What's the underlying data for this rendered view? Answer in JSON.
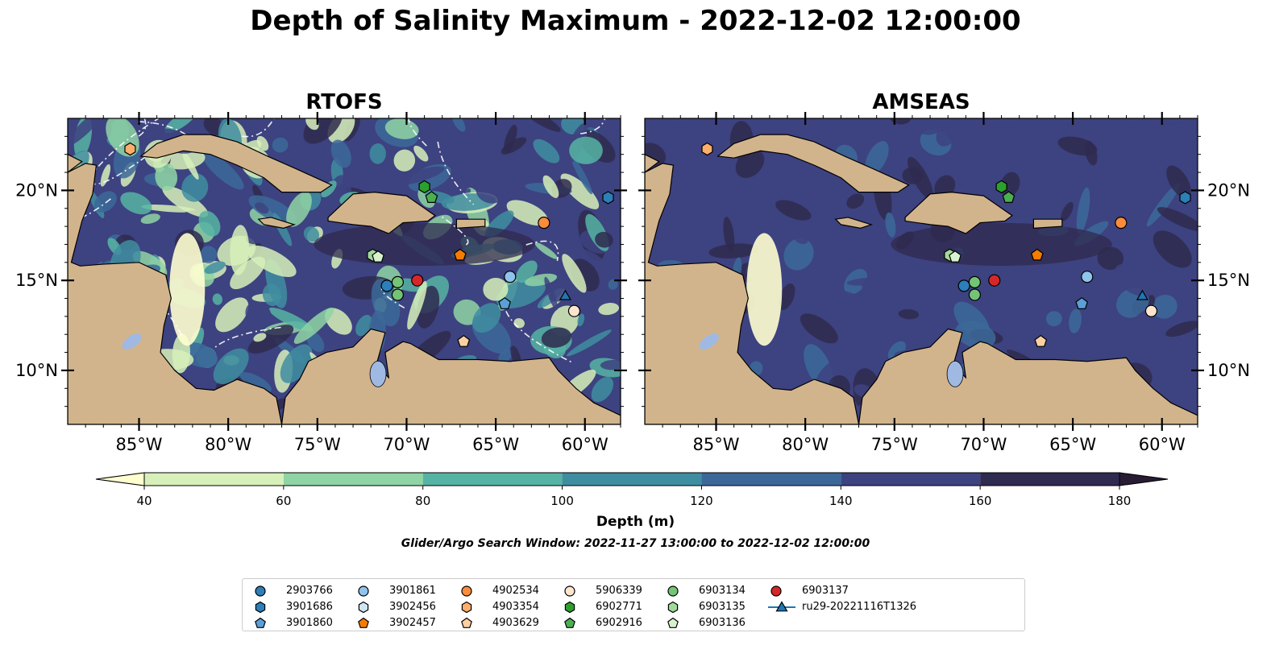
{
  "title": "Depth of Salinity Maximum - 2022-12-02 12:00:00",
  "panels": [
    {
      "name": "RTOFS"
    },
    {
      "name": "AMSEAS"
    }
  ],
  "axes": {
    "lat_ticks": [
      "20°N",
      "15°N",
      "10°N"
    ],
    "lon_ticks": [
      "85°W",
      "80°W",
      "75°W",
      "70°W",
      "65°W",
      "60°W"
    ],
    "lon_range": [
      -89,
      -58
    ],
    "lat_range": [
      7,
      24
    ]
  },
  "colorbar": {
    "label": "Depth (m)",
    "ticks": [
      "40",
      "60",
      "80",
      "100",
      "120",
      "140",
      "160",
      "180"
    ],
    "colors": [
      "#d7f0ba",
      "#8fd4a4",
      "#56b3a3",
      "#3f8da0",
      "#3c6899",
      "#3d4280",
      "#2f2a4f"
    ],
    "under_color": "#ffffd0",
    "over_color": "#281c35"
  },
  "search_window": "Glider/Argo Search Window: 2022-11-27 13:00:00 to 2022-12-02 12:00:00",
  "legend": [
    {
      "label": "2903766",
      "marker": "circle",
      "color": "#2c7fb8"
    },
    {
      "label": "3901686",
      "marker": "hexagon",
      "color": "#2c7fb8"
    },
    {
      "label": "3901860",
      "marker": "pentagon",
      "color": "#5b9fd6"
    },
    {
      "label": "3901861",
      "marker": "circle",
      "color": "#8fc3ec"
    },
    {
      "label": "3902456",
      "marker": "hexagon",
      "color": "#cfe5f6"
    },
    {
      "label": "3902457",
      "marker": "pentagon",
      "color": "#f57c00"
    },
    {
      "label": "4902534",
      "marker": "circle",
      "color": "#fb8c3c"
    },
    {
      "label": "4903354",
      "marker": "hexagon",
      "color": "#fdae6b"
    },
    {
      "label": "4903629",
      "marker": "pentagon",
      "color": "#fdd0a2"
    },
    {
      "label": "5906339",
      "marker": "circle",
      "color": "#fee6ce"
    },
    {
      "label": "6902771",
      "marker": "hexagon",
      "color": "#2ca02c"
    },
    {
      "label": "6902916",
      "marker": "pentagon",
      "color": "#4caf50"
    },
    {
      "label": "6903134",
      "marker": "circle",
      "color": "#74c476"
    },
    {
      "label": "6903135",
      "marker": "hexagon",
      "color": "#a1d99b"
    },
    {
      "label": "6903136",
      "marker": "pentagon",
      "color": "#d8f2cf"
    },
    {
      "label": "6903137",
      "marker": "circle",
      "color": "#d62728"
    },
    {
      "label": "ru29-20221116T1326",
      "marker": "triangle",
      "color": "#1f77b4"
    }
  ],
  "floats": [
    {
      "id": "3901686",
      "lon": -58.7,
      "lat": 19.6
    },
    {
      "id": "4903354",
      "lon": -85.5,
      "lat": 22.3
    },
    {
      "id": "6902771",
      "lon": -69.0,
      "lat": 20.2
    },
    {
      "id": "6902916",
      "lon": -68.6,
      "lat": 19.6
    },
    {
      "id": "4902534",
      "lon": -62.3,
      "lat": 18.2
    },
    {
      "id": "3902457",
      "lon": -67.0,
      "lat": 16.4
    },
    {
      "id": "6903135",
      "lon": -71.9,
      "lat": 16.4
    },
    {
      "id": "6903136",
      "lon": -71.6,
      "lat": 16.3
    },
    {
      "id": "3901861",
      "lon": -64.2,
      "lat": 15.2
    },
    {
      "id": "6903137",
      "lon": -69.4,
      "lat": 15.0
    },
    {
      "id": "2903766",
      "lon": -71.1,
      "lat": 14.7
    },
    {
      "id": "6903134",
      "lon": -70.5,
      "lat": 14.9
    },
    {
      "id": "6903134",
      "lon": -70.5,
      "lat": 14.2
    },
    {
      "id": "3901860",
      "lon": -64.5,
      "lat": 13.7
    },
    {
      "id": "ru29-20221116T1326",
      "lon": -61.1,
      "lat": 14.1
    },
    {
      "id": "5906339",
      "lon": -60.6,
      "lat": 13.3
    },
    {
      "id": "4903629",
      "lon": -66.8,
      "lat": 11.6
    }
  ]
}
